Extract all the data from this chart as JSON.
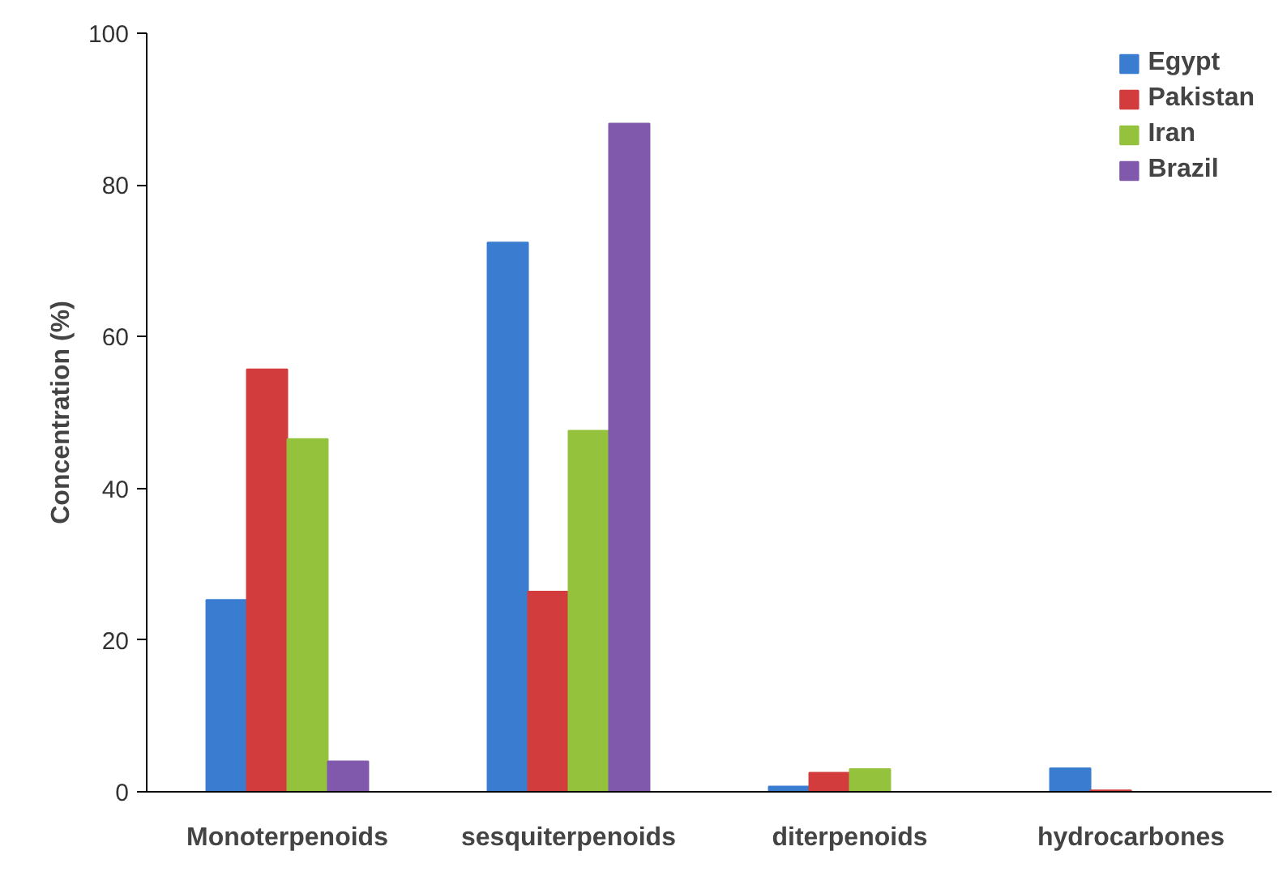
{
  "chart_data": {
    "type": "bar",
    "ylabel": "Concentration (%)",
    "categories": [
      "Monoterpenoids",
      "sesquiterpenoids",
      "diterpenoids",
      "hydrocarbones"
    ],
    "series": [
      {
        "name": "Egypt",
        "color": "#3a7dd0",
        "values": [
          25.3,
          72.4,
          0.7,
          3.1
        ]
      },
      {
        "name": "Pakistan",
        "color": "#d23c3c",
        "values": [
          55.7,
          26.4,
          2.5,
          0.2
        ]
      },
      {
        "name": "Iran",
        "color": "#95c23c",
        "values": [
          46.5,
          47.6,
          3.0,
          null
        ]
      },
      {
        "name": "Brazil",
        "color": "#8058ac",
        "values": [
          4.0,
          88.1,
          null,
          null
        ]
      }
    ],
    "ylim": [
      0,
      100
    ],
    "yticks": [
      0,
      20,
      40,
      60,
      80,
      100
    ],
    "grid": false,
    "legend": "top right"
  }
}
